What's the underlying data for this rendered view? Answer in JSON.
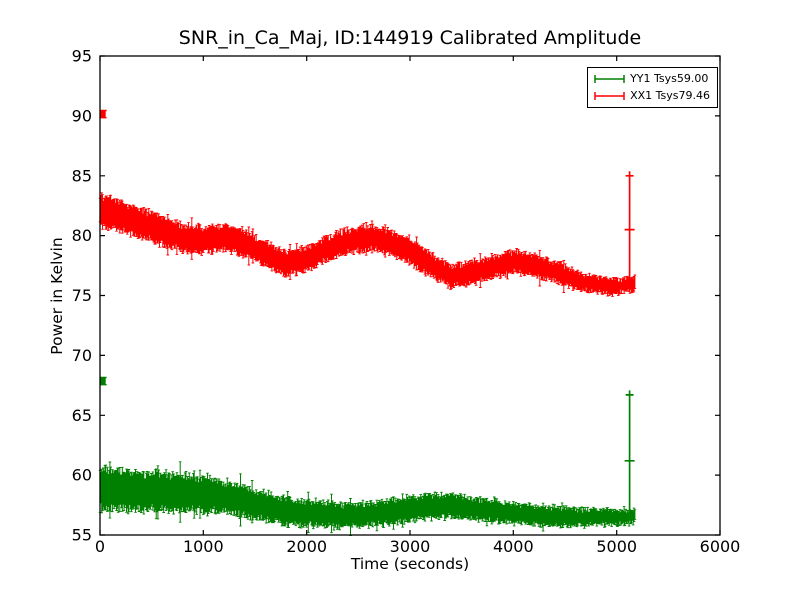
{
  "figure": {
    "background": "#ffffff",
    "frame_color": "#000000",
    "text_color": "#000000"
  },
  "chart_data": {
    "type": "errorbar",
    "title": "SNR_in_Ca_Maj, ID:144919 Calibrated Amplitude",
    "xlabel": "Time (seconds)",
    "ylabel": "Power in Kelvin",
    "xlim": [
      0,
      6000
    ],
    "ylim": [
      55,
      95
    ],
    "xticks": [
      0,
      1000,
      2000,
      3000,
      4000,
      5000,
      6000
    ],
    "yticks": [
      55,
      60,
      65,
      70,
      75,
      80,
      85,
      90,
      95
    ],
    "grid": false,
    "tick_direction": "in",
    "legend": {
      "position": "upper-right"
    },
    "series": [
      {
        "id": "yy1",
        "name": "YY1 Tsys59.00",
        "color": "#008000",
        "tsys": 59.0,
        "start_outlier": {
          "t": 30,
          "value": 67.85,
          "err": 0.3
        },
        "end_spike": {
          "t": 5125,
          "low": 56.2,
          "mid": 61.2,
          "top": 66.7
        },
        "band": {
          "t": [
            0,
            200,
            400,
            600,
            800,
            1000,
            1200,
            1400,
            1600,
            1800,
            2000,
            2200,
            2400,
            2600,
            2800,
            3000,
            3200,
            3400,
            3600,
            3800,
            4000,
            4200,
            4400,
            4600,
            4800,
            5000,
            5176
          ],
          "center": [
            58.8,
            58.75,
            58.65,
            58.6,
            58.5,
            58.4,
            58.15,
            57.8,
            57.4,
            57.0,
            56.85,
            56.7,
            56.6,
            56.7,
            56.9,
            57.2,
            57.4,
            57.4,
            57.2,
            57.0,
            56.8,
            56.6,
            56.55,
            56.5,
            56.45,
            56.45,
            56.55
          ],
          "err": [
            1.6,
            1.5,
            1.45,
            1.4,
            1.35,
            1.3,
            1.25,
            1.15,
            1.05,
            1.0,
            0.95,
            0.9,
            0.85,
            0.85,
            0.9,
            0.9,
            0.9,
            0.85,
            0.8,
            0.8,
            0.75,
            0.7,
            0.7,
            0.65,
            0.6,
            0.55,
            0.5
          ]
        }
      },
      {
        "id": "xx1",
        "name": "XX1 Tsys79.46",
        "color": "#ff0000",
        "tsys": 79.46,
        "start_outlier": {
          "t": 30,
          "value": 90.15,
          "err": 0.3
        },
        "end_spike": {
          "t": 5125,
          "low": 75.9,
          "mid": 80.5,
          "top": 85.0
        },
        "band": {
          "t": [
            0,
            200,
            400,
            600,
            800,
            1000,
            1200,
            1400,
            1600,
            1800,
            2000,
            2200,
            2400,
            2600,
            2800,
            3000,
            3200,
            3400,
            3600,
            3800,
            4000,
            4200,
            4400,
            4600,
            4800,
            5000,
            5176
          ],
          "center": [
            82.2,
            81.6,
            81.0,
            80.4,
            79.8,
            79.6,
            79.85,
            79.4,
            78.5,
            77.6,
            78.1,
            78.9,
            79.5,
            79.8,
            79.5,
            78.7,
            77.6,
            76.6,
            76.9,
            77.4,
            77.8,
            77.6,
            77.0,
            76.3,
            75.9,
            75.7,
            76.0
          ],
          "err": [
            1.2,
            1.15,
            1.1,
            1.05,
            1.0,
            1.0,
            0.95,
            0.95,
            0.9,
            0.9,
            0.9,
            0.9,
            0.9,
            0.9,
            0.9,
            0.9,
            0.9,
            0.85,
            0.85,
            0.8,
            0.8,
            0.8,
            0.75,
            0.7,
            0.6,
            0.55,
            0.5
          ]
        }
      }
    ]
  }
}
